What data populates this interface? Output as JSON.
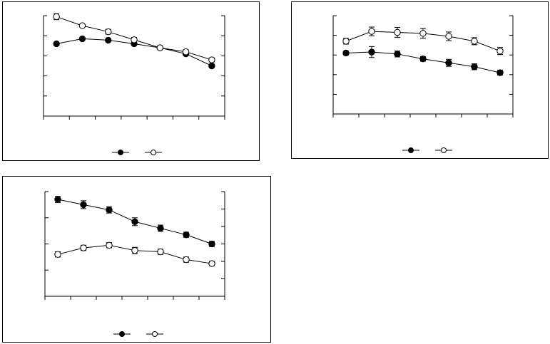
{
  "chart_data": [
    {
      "type": "line",
      "x": [
        1,
        2,
        3,
        4,
        5,
        6,
        7
      ],
      "ylim": [
        0,
        5
      ],
      "y2lim": [
        0,
        5
      ],
      "grid": false,
      "legend": "bottom-center",
      "series": [
        {
          "marker": "filled-circle",
          "values": [
            3.6,
            3.85,
            3.78,
            3.6,
            3.4,
            3.1,
            2.5
          ],
          "err": [
            0.05,
            0.05,
            0.05,
            0.05,
            0.05,
            0.05,
            0.08
          ]
        },
        {
          "marker": "open-circle",
          "values": [
            4.95,
            4.5,
            4.2,
            3.8,
            3.4,
            3.2,
            2.8
          ],
          "err": [
            0.15,
            0.08,
            0.12,
            0.12,
            0.08,
            0.1,
            0.1
          ]
        }
      ]
    },
    {
      "type": "line",
      "x": [
        1,
        2,
        3,
        4,
        5,
        6,
        7
      ],
      "ylim": [
        0,
        5
      ],
      "y2lim": [
        0,
        5
      ],
      "grid": false,
      "legend": "bottom-center",
      "series": [
        {
          "marker": "filled-circle",
          "values": [
            3.1,
            3.15,
            3.05,
            2.8,
            2.6,
            2.4,
            2.1
          ],
          "err": [
            0.1,
            0.28,
            0.15,
            0.12,
            0.18,
            0.15,
            0.12
          ]
        },
        {
          "marker": "open-circle",
          "values": [
            3.7,
            4.2,
            4.15,
            4.1,
            3.95,
            3.7,
            3.2
          ],
          "err": [
            0.15,
            0.22,
            0.25,
            0.25,
            0.22,
            0.18,
            0.18
          ]
        }
      ]
    },
    {
      "type": "line",
      "x": [
        1,
        2,
        3,
        4,
        5,
        6,
        7
      ],
      "ylim": [
        0,
        4
      ],
      "y2lim": [
        0,
        6
      ],
      "grid": false,
      "legend": "bottom-center",
      "series": [
        {
          "marker": "filled-circle",
          "values": [
            3.7,
            3.5,
            3.3,
            2.85,
            2.6,
            2.35,
            2.0
          ],
          "err": [
            0.12,
            0.15,
            0.12,
            0.15,
            0.12,
            0.1,
            0.1
          ]
        },
        {
          "marker": "open-circle",
          "values": [
            1.6,
            1.85,
            1.95,
            1.75,
            1.7,
            1.4,
            1.25
          ],
          "err": [
            0.1,
            0.1,
            0.1,
            0.12,
            0.1,
            0.1,
            0.08
          ]
        }
      ]
    }
  ]
}
